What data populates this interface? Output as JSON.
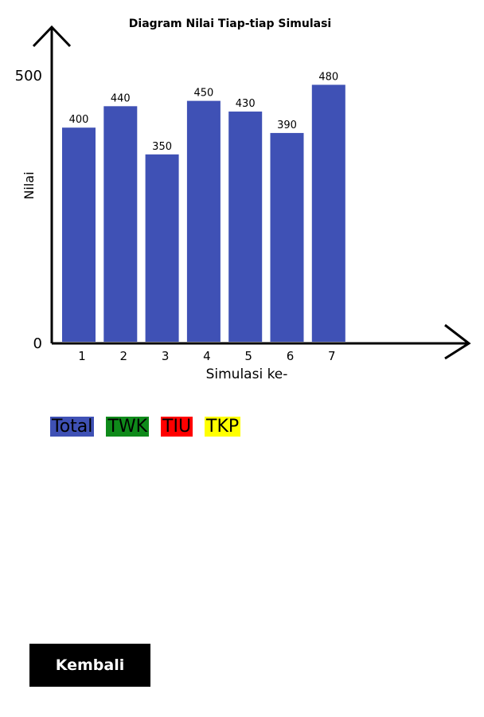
{
  "chart_data": {
    "type": "bar",
    "title": "Diagram Nilai Tiap-tiap Simulasi",
    "xlabel": "Simulasi ke-",
    "ylabel": "Nilai",
    "categories": [
      "1",
      "2",
      "3",
      "4",
      "5",
      "6",
      "7"
    ],
    "values": [
      400,
      440,
      350,
      450,
      430,
      390,
      480
    ],
    "ylim": [
      0,
      500
    ],
    "yticks": [
      0,
      500
    ],
    "bar_color": "#3f51b5",
    "grid": false,
    "legend_position": "bottom-left"
  },
  "legend": [
    {
      "label": "Total",
      "color": "#3f51b5"
    },
    {
      "label": "TWK",
      "color": "#0f8a1a"
    },
    {
      "label": "TIU",
      "color": "#ff0000"
    },
    {
      "label": "TKP",
      "color": "#ffff00"
    }
  ],
  "back_button": {
    "label": "Kembali"
  }
}
